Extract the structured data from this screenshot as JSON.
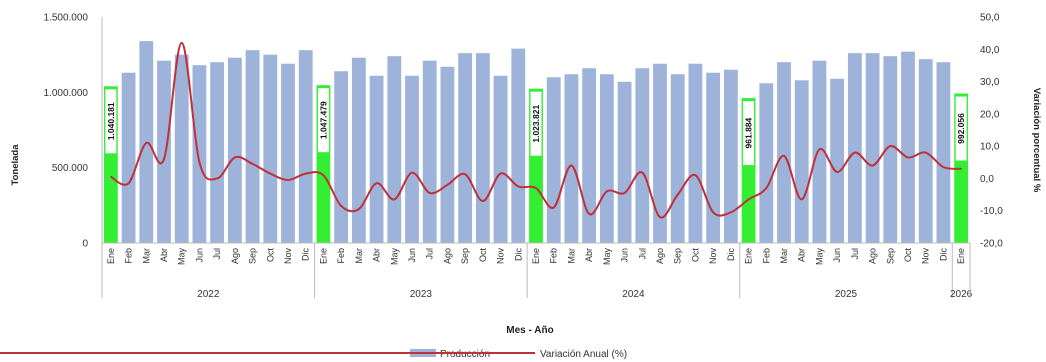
{
  "chart_data": {
    "type": "bar",
    "xlabel": "Mes - Año",
    "ylabel": "Tonelada",
    "y2label": "Variación porcentual %",
    "ylim": [
      0,
      1500000
    ],
    "y2lim": [
      -20,
      50
    ],
    "yticks": [
      "1.500.000",
      "1.000.000",
      "500.000",
      "0"
    ],
    "y2ticks": [
      "50,0",
      "40,0",
      "30,0",
      "20,0",
      "10,0",
      "0,0",
      "-10,0",
      "-20,0"
    ],
    "months": [
      "Ene",
      "Feb",
      "Mar",
      "Abr",
      "May",
      "Jun",
      "Jul",
      "Ago",
      "Sep",
      "Oct",
      "Nov",
      "Dic",
      "Ene",
      "Feb",
      "Mar",
      "Abr",
      "May",
      "Jun",
      "Jul",
      "Ago",
      "Sep",
      "Oct",
      "Nov",
      "Dic",
      "Ene",
      "Feb",
      "Mar",
      "Abr",
      "May",
      "Jun",
      "Jul",
      "Ago",
      "Sep",
      "Oct",
      "Nov",
      "Dic",
      "Ene",
      "Feb",
      "Mar",
      "Abr",
      "May",
      "Jun",
      "Jul",
      "Ago",
      "Sep",
      "Oct",
      "Nov",
      "Dic",
      "Ene"
    ],
    "years": [
      {
        "label": "2022",
        "start": 0,
        "count": 12
      },
      {
        "label": "2023",
        "start": 12,
        "count": 12
      },
      {
        "label": "2024",
        "start": 24,
        "count": 12
      },
      {
        "label": "2025",
        "start": 36,
        "count": 12
      },
      {
        "label": "2026",
        "start": 48,
        "count": 1
      }
    ],
    "highlight_indices": [
      0,
      12,
      24,
      36,
      48
    ],
    "grid": false,
    "legend_position": "bottom",
    "series": [
      {
        "name": "Producción",
        "kind": "bar",
        "axis": "left",
        "color": "#9db3d9",
        "highlight_color": "#33ee33",
        "values": [
          1040181,
          1130000,
          1340000,
          1210000,
          1250000,
          1180000,
          1200000,
          1230000,
          1280000,
          1250000,
          1190000,
          1280000,
          1047479,
          1140000,
          1230000,
          1110000,
          1240000,
          1110000,
          1210000,
          1170000,
          1260000,
          1260000,
          1110000,
          1290000,
          1023821,
          1100000,
          1120000,
          1160000,
          1120000,
          1070000,
          1160000,
          1190000,
          1120000,
          1190000,
          1130000,
          1150000,
          961884,
          1060000,
          1200000,
          1080000,
          1210000,
          1090000,
          1260000,
          1260000,
          1240000,
          1270000,
          1220000,
          1200000,
          992056
        ],
        "data_labels": [
          "1.040.181",
          "1.047.479",
          "1.023.821",
          "961.884",
          "992.056"
        ]
      },
      {
        "name": "Variación Anual (%)",
        "kind": "line",
        "axis": "right",
        "color": "#c0303a",
        "values": [
          0.5,
          -1.5,
          11.0,
          6.0,
          42.0,
          5.0,
          0.0,
          6.5,
          4.5,
          1.5,
          -0.5,
          1.5,
          1.0,
          -8.5,
          -9.5,
          -1.5,
          -6.5,
          1.8,
          -4.5,
          -2.0,
          1.3,
          -7.0,
          1.5,
          -2.5,
          -3.0,
          -9.0,
          4.0,
          -11.0,
          -4.0,
          -4.5,
          1.8,
          -12.0,
          -5.0,
          1.0,
          -10.5,
          -10.5,
          -6.5,
          -3.0,
          7.0,
          -6.5,
          9.0,
          2.0,
          8.0,
          4.0,
          10.0,
          6.5,
          8.0,
          3.5,
          3.0
        ]
      }
    ]
  }
}
